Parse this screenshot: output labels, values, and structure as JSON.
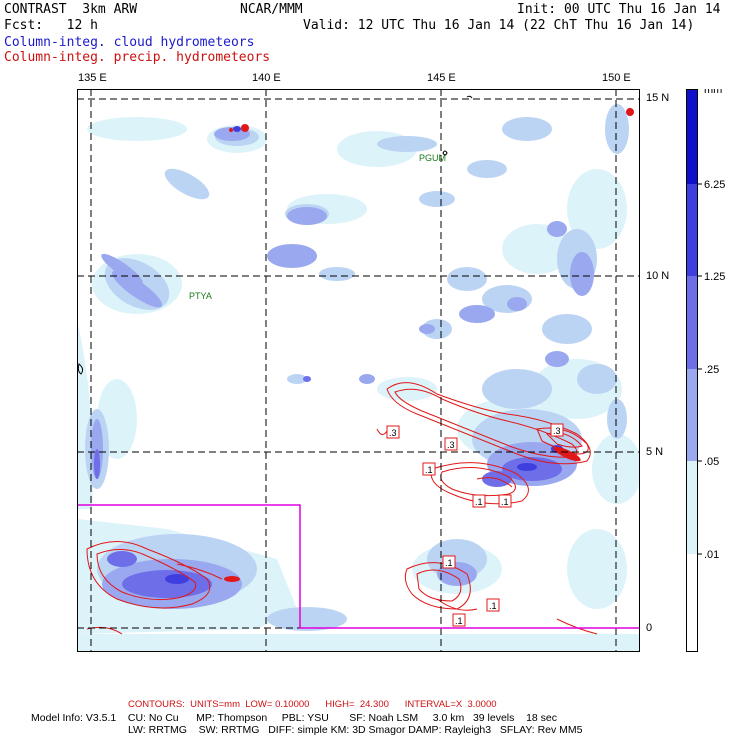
{
  "header": {
    "model": "CONTRAST  3km ARW",
    "org": "NCAR/MMM",
    "init": "Init: 00 UTC Thu 16 Jan 14",
    "fcst": "Fcst:   12 h",
    "valid": "Valid: 12 UTC Thu 16 Jan 14 (22 ChT Thu 16 Jan 14)",
    "field1": "Column-integ. cloud hydrometeors",
    "field2": "Column-integ. precip. hydrometeors"
  },
  "map": {
    "lon_labels": [
      "135 E",
      "140 E",
      "145 E",
      "150 E"
    ],
    "lat_labels": [
      "15 N",
      "10 N",
      "5 N",
      "0"
    ],
    "stations": [
      "PGUM",
      "PTYA"
    ],
    "contour_labels": [
      ".3",
      ".3",
      ".1",
      ".1",
      ".1",
      ".3",
      ".1",
      ".1",
      ".1"
    ],
    "colors": {
      "lightest": "#ddf3fa",
      "light": "#bcd4f3",
      "medium": "#9aa8ef",
      "strong": "#6e6ee8",
      "stronger": "#3f3fe0",
      "darkest": "#1010cc",
      "contour": "#e01818",
      "box": "#e000e0"
    }
  },
  "colorbar": {
    "unit": "mm",
    "levels": [
      "6.25",
      "1.25",
      ".25",
      ".05",
      ".01"
    ]
  },
  "footer": {
    "contours": "CONTOURS:  UNITS=mm  LOW= 0.10000      HIGH=  24.300      INTERVAL=X  3.0000",
    "line1": "Model Info: V3.5.1    CU: No Cu      MP: Thompson     PBL: YSU       SF: Noah LSM     3.0 km   39 levels    18 sec",
    "line2": "LW: RRTMG    SW: RRTMG   DIFF: simple KM: 3D Smagor DAMP: Rayleigh3   SFLAY: Rev MM5"
  }
}
